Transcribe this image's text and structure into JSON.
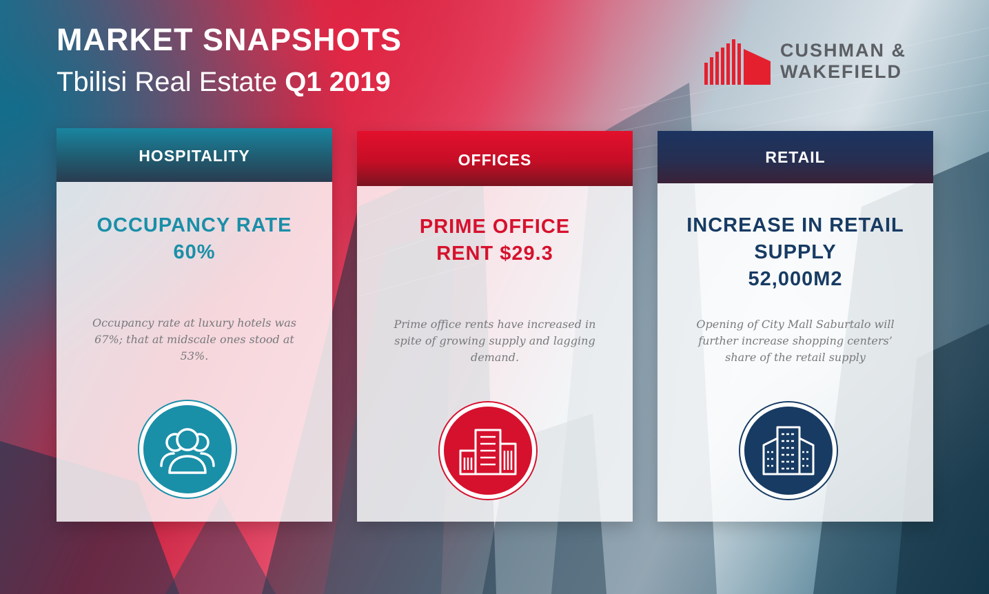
{
  "title": "MARKET SNAPSHOTS",
  "subtitle": {
    "text": "Tbilisi Real Estate",
    "emphasis": "Q1 2019"
  },
  "brand": {
    "line1": "CUSHMAN &",
    "line2": "WAKEFIELD",
    "logo_color": "#e4202f",
    "text_color": "#5b5f64"
  },
  "panels": [
    {
      "header": "HOSPITALITY",
      "headline": [
        "OCCUPANCY RATE",
        "60%"
      ],
      "description": "Occupancy rate at luxury hotels was 67%; that at midscale ones stood at 53%.",
      "icon": "people-group-icon",
      "accent": "#1a8fa8"
    },
    {
      "header": "OFFICES",
      "headline": [
        "PRIME OFFICE",
        "RENT $29.3"
      ],
      "description": "Prime office rents have increased in spite of growing supply and lagging demand.",
      "icon": "office-buildings-icon",
      "accent": "#d6112d"
    },
    {
      "header": "RETAIL",
      "headline": [
        "INCREASE IN RETAIL",
        "SUPPLY",
        "52,000M2"
      ],
      "description": "Opening of City Mall Saburtalo will further increase shopping centers’ share of the retail supply",
      "icon": "shopping-center-icon",
      "accent": "#173b63"
    }
  ]
}
